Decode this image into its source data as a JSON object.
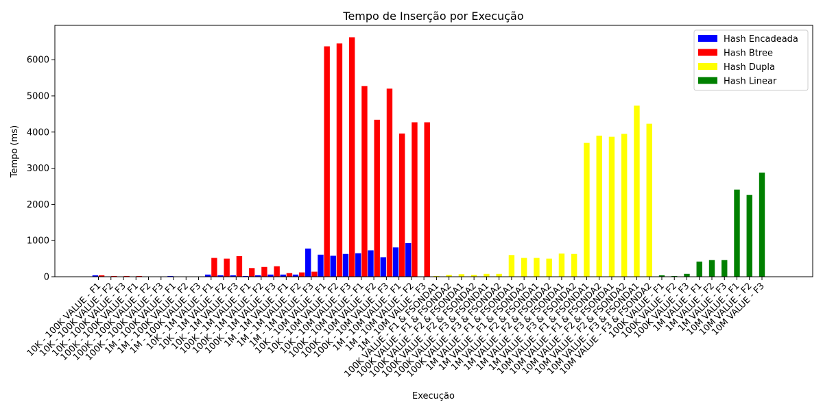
{
  "chart_data": {
    "type": "bar",
    "title": "Tempo de Inserção por Execução",
    "xlabel": "Execução",
    "ylabel": "Tempo (ms)",
    "ylim": [
      0,
      6950
    ],
    "yticks": [
      0,
      1000,
      2000,
      3000,
      4000,
      5000,
      6000
    ],
    "grid": false,
    "legend_position": "top-right",
    "categories": [
      "10K - 100K VALUE - F1",
      "10K - 100K VALUE - F2",
      "10K - 100K VALUE - F3",
      "100K - 100K VALUE - F1",
      "100K - 100K VALUE - F2",
      "100K - 100K VALUE - F3",
      "1M - 100K VALUE - F1",
      "1M - 100K VALUE - F2",
      "1M - 100K VALUE - F3",
      "10K - 1M VALUE - F1",
      "10K - 1M VALUE - F2",
      "10K - 1M VALUE - F3",
      "100K - 1M VALUE - F1",
      "100K - 1M VALUE - F2",
      "100K - 1M VALUE - F3",
      "1M - 1M VALUE - F1",
      "1M - 1M VALUE - F2",
      "1M - 1M VALUE - F3",
      "10K - 10M VALUE - F1",
      "10K - 10M VALUE - F2",
      "10K - 10M VALUE - F3",
      "100K - 10M VALUE - F1",
      "100K - 10M VALUE - F2",
      "100K - 10M VALUE - F3",
      "1M - 10M VALUE - F1",
      "1M - 10M VALUE - F2",
      "1M - 10M VALUE - F3",
      "100K VALUE - F1 & FSONDA1",
      "100K VALUE - F1 & FSONDA2",
      "100K VALUE - F2 & FSONDA1",
      "100K VALUE - F2 & FSONDA2",
      "100K VALUE - F3 & FSONDA1",
      "100K VALUE - F3 & FSONDA2",
      "1M VALUE - F1 & FSONDA1",
      "1M VALUE - F1 & FSONDA2",
      "1M VALUE - F2 & FSONDA1",
      "1M VALUE - F2 & FSONDA2",
      "1M VALUE - F3 & FSONDA1",
      "1M VALUE - F3 & FSONDA2",
      "10M VALUE - F1 & FSONDA1",
      "10M VALUE - F1 & FSONDA2",
      "10M VALUE - F2 & FSONDA1",
      "10M VALUE - F2 & FSONDA2",
      "10M VALUE - F3 & FSONDA1",
      "10M VALUE - F3 & FSONDA2",
      "100K VALUE - F1",
      "100K VALUE - F2",
      "100K VALUE - F3",
      "1M VALUE - F1",
      "1M VALUE - F2",
      "1M VALUE - F3",
      "10M VALUE - F1",
      "10M VALUE - F2",
      "10M VALUE - F3"
    ],
    "series": [
      {
        "name": "Hash Encadeada",
        "color": "#0000ff",
        "values": [
          40,
          10,
          5,
          5,
          5,
          5,
          20,
          5,
          5,
          60,
          40,
          40,
          20,
          40,
          60,
          60,
          60,
          780,
          610,
          580,
          630,
          650,
          730,
          540,
          810,
          930,
          null,
          null,
          null,
          null,
          null,
          null,
          null,
          null,
          null,
          null,
          null,
          null,
          null,
          null,
          null,
          null,
          null,
          null,
          null,
          null,
          null,
          null,
          null,
          null,
          null,
          null,
          null,
          null
        ]
      },
      {
        "name": "Hash Btree",
        "color": "#ff0000",
        "values": [
          40,
          20,
          20,
          20,
          5,
          5,
          5,
          5,
          5,
          520,
          500,
          570,
          240,
          270,
          290,
          100,
          120,
          140,
          6370,
          6450,
          6620,
          5270,
          4340,
          5200,
          3960,
          4270,
          4270,
          null,
          null,
          null,
          null,
          null,
          null,
          null,
          null,
          null,
          null,
          null,
          null,
          null,
          null,
          null,
          null,
          null,
          null,
          null,
          null,
          null,
          null,
          null,
          null,
          null,
          null,
          null
        ]
      },
      {
        "name": "Hash Dupla",
        "color": "#ffff00",
        "values": [
          null,
          null,
          null,
          null,
          null,
          null,
          null,
          null,
          null,
          null,
          null,
          null,
          null,
          null,
          null,
          null,
          null,
          null,
          null,
          null,
          null,
          null,
          null,
          null,
          null,
          null,
          null,
          20,
          50,
          70,
          50,
          80,
          80,
          600,
          520,
          520,
          500,
          640,
          630,
          3700,
          3900,
          3870,
          3950,
          4730,
          4230,
          null,
          null,
          null,
          null,
          null,
          null,
          null,
          null,
          null
        ]
      },
      {
        "name": "Hash Linear",
        "color": "#008000",
        "values": [
          null,
          null,
          null,
          null,
          null,
          null,
          null,
          null,
          null,
          null,
          null,
          null,
          null,
          null,
          null,
          null,
          null,
          null,
          null,
          null,
          null,
          null,
          null,
          null,
          null,
          null,
          null,
          null,
          null,
          null,
          null,
          null,
          null,
          null,
          null,
          null,
          null,
          null,
          null,
          null,
          null,
          null,
          null,
          null,
          null,
          40,
          20,
          80,
          420,
          460,
          460,
          2410,
          2260,
          2880
        ]
      }
    ]
  }
}
